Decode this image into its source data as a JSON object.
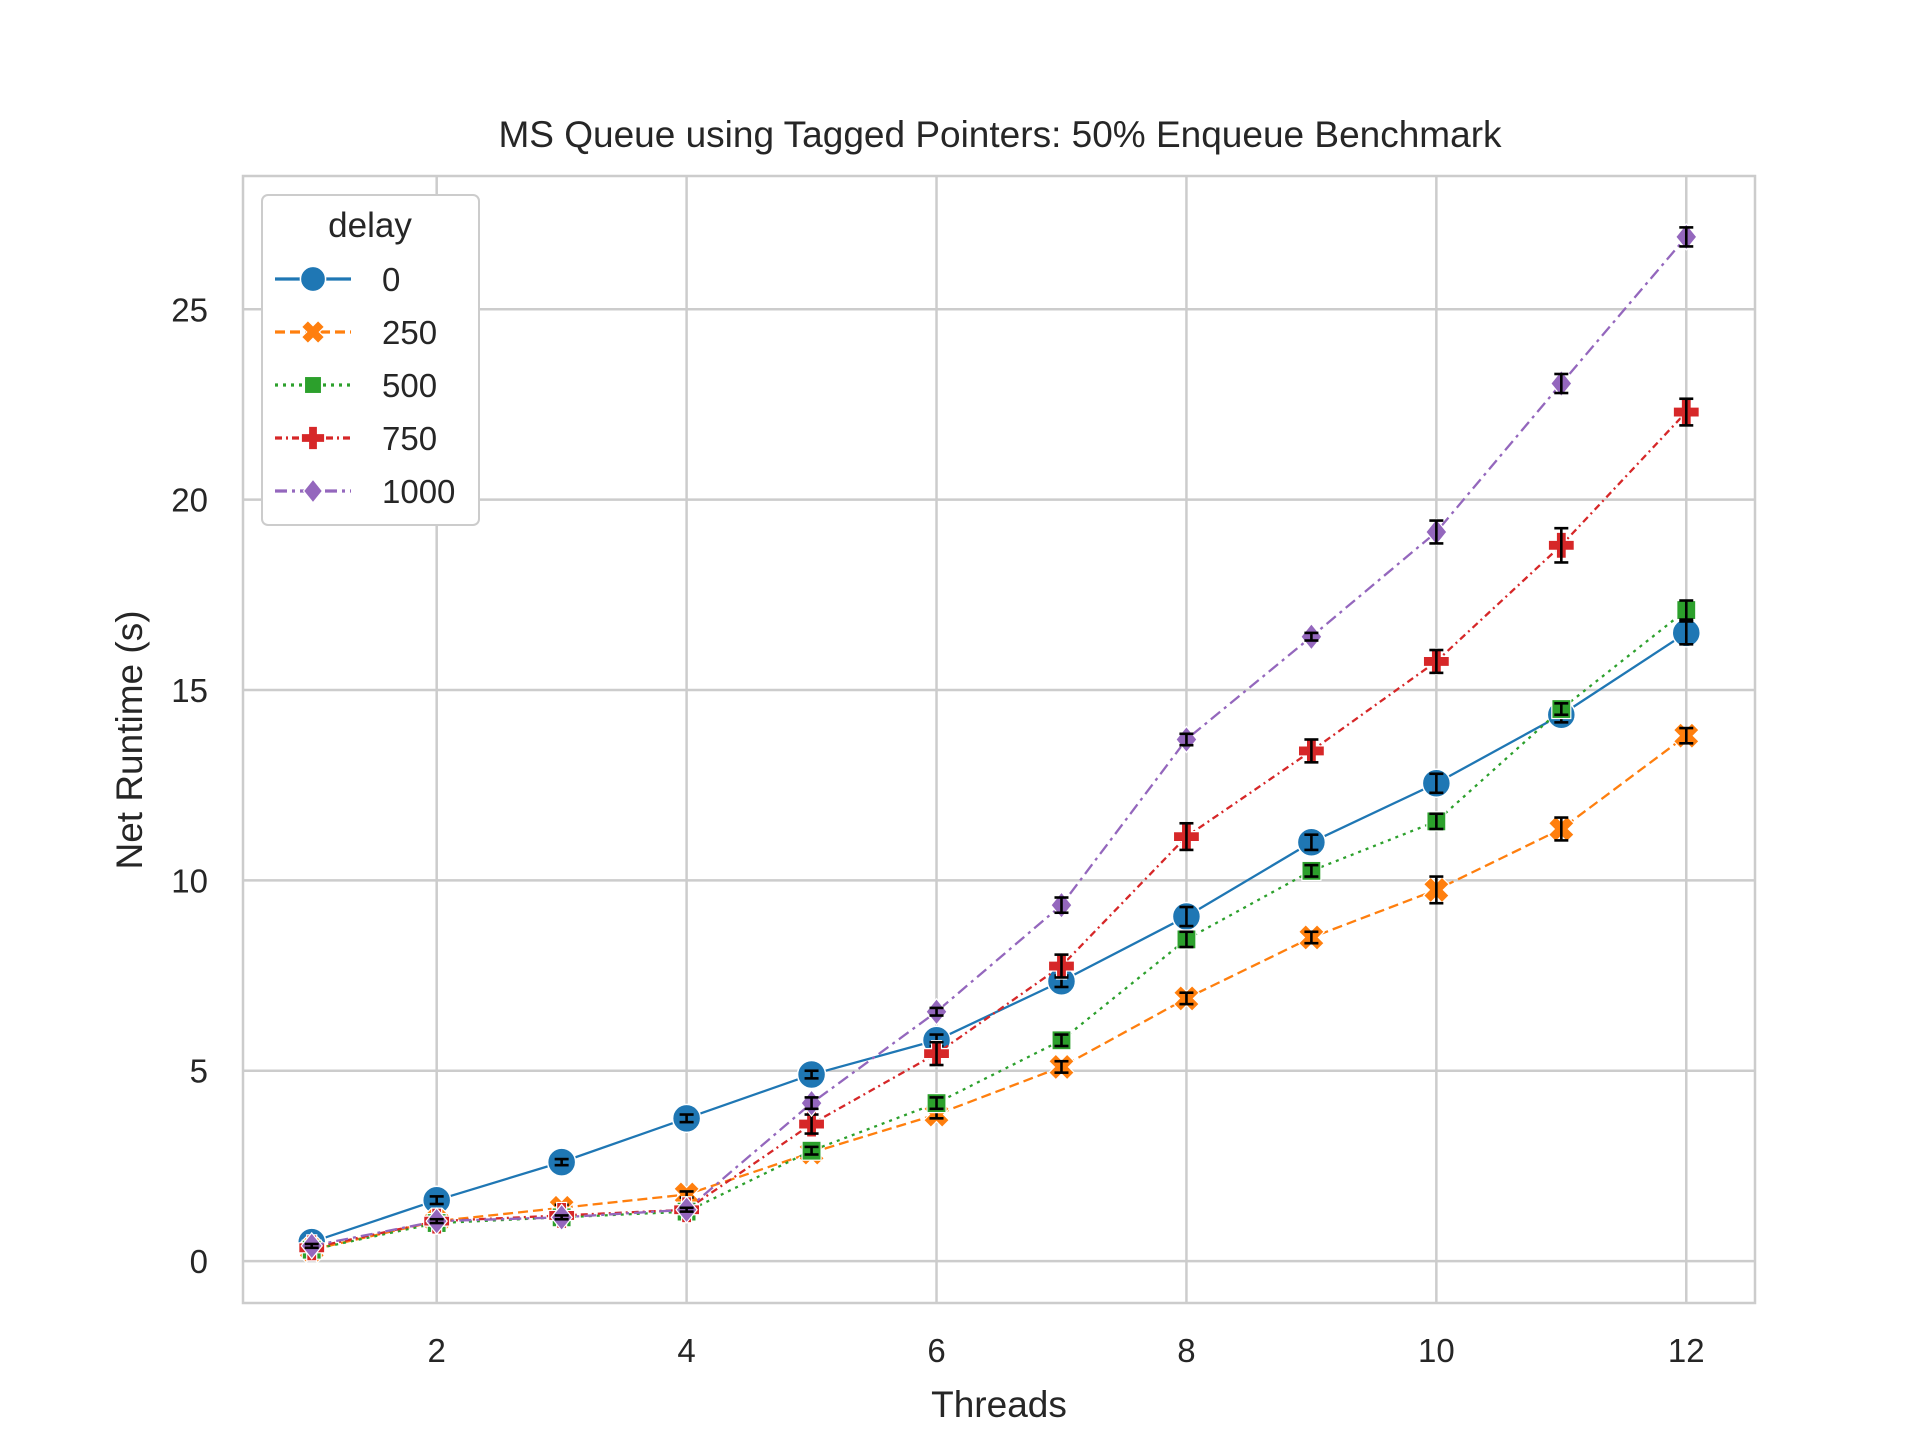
{
  "chart_data": {
    "type": "line",
    "title": "MS Queue using Tagged Pointers: 50% Enqueue Benchmark",
    "xlabel": "Threads",
    "ylabel": "Net Runtime (s)",
    "x": [
      1,
      2,
      3,
      4,
      5,
      6,
      7,
      8,
      9,
      10,
      11,
      12
    ],
    "xticks": [
      2,
      4,
      6,
      8,
      10,
      12
    ],
    "yticks": [
      0,
      5,
      10,
      15,
      20,
      25
    ],
    "xlim": [
      0.45,
      12.55
    ],
    "ylim": [
      -1.1,
      28.5
    ],
    "grid": true,
    "legend": {
      "title": "delay",
      "placement": "upper-left"
    },
    "series": [
      {
        "name": "0",
        "color": "#1f77b4",
        "marker": "circle",
        "dash": "solid",
        "values": [
          0.5,
          1.6,
          2.6,
          3.75,
          4.9,
          5.8,
          7.35,
          9.05,
          11.0,
          12.55,
          14.35,
          16.5
        ],
        "err": [
          0.05,
          0.1,
          0.08,
          0.1,
          0.1,
          0.15,
          0.15,
          0.25,
          0.2,
          0.25,
          0.2,
          0.3
        ]
      },
      {
        "name": "250",
        "color": "#ff7f0e",
        "marker": "x",
        "dash": "dashed",
        "values": [
          0.3,
          1.05,
          1.4,
          1.75,
          2.85,
          3.85,
          5.1,
          6.9,
          8.5,
          9.75,
          11.35,
          13.8
        ],
        "err": [
          0.05,
          0.08,
          0.08,
          0.08,
          0.1,
          0.1,
          0.15,
          0.15,
          0.15,
          0.35,
          0.3,
          0.2
        ]
      },
      {
        "name": "500",
        "color": "#2ca02c",
        "marker": "square",
        "dash": "dotted",
        "values": [
          0.3,
          1.0,
          1.15,
          1.3,
          2.9,
          4.15,
          5.8,
          8.45,
          10.25,
          11.55,
          14.5,
          17.1
        ],
        "err": [
          0.05,
          0.05,
          0.05,
          0.05,
          0.1,
          0.15,
          0.15,
          0.2,
          0.15,
          0.2,
          0.15,
          0.25
        ]
      },
      {
        "name": "750",
        "color": "#d62728",
        "marker": "plus",
        "dash": "dashdot-dense",
        "values": [
          0.35,
          1.05,
          1.2,
          1.35,
          3.6,
          5.45,
          7.75,
          11.15,
          13.4,
          15.75,
          18.8,
          22.3
        ],
        "err": [
          0.05,
          0.05,
          0.05,
          0.05,
          0.25,
          0.3,
          0.3,
          0.35,
          0.3,
          0.3,
          0.45,
          0.35
        ]
      },
      {
        "name": "1000",
        "color": "#9467bd",
        "marker": "diamond",
        "dash": "dashdot",
        "values": [
          0.4,
          1.05,
          1.15,
          1.35,
          4.15,
          6.55,
          9.35,
          13.7,
          16.4,
          19.15,
          23.05,
          26.9
        ],
        "err": [
          0.05,
          0.05,
          0.05,
          0.05,
          0.15,
          0.1,
          0.2,
          0.15,
          0.1,
          0.3,
          0.25,
          0.25
        ]
      }
    ]
  }
}
